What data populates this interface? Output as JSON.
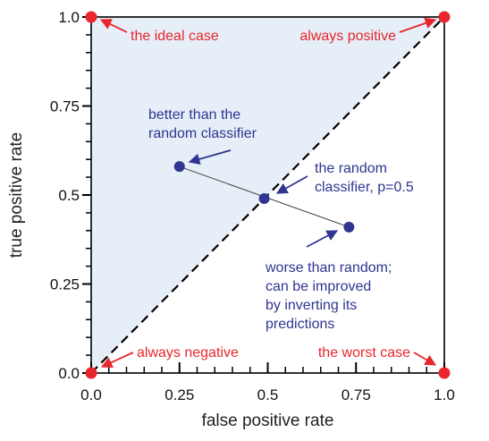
{
  "chart_data": {
    "type": "scatter",
    "xlabel": "false positive rate",
    "ylabel": "true positive rate",
    "xlim": [
      0,
      1
    ],
    "ylim": [
      0,
      1
    ],
    "x_ticks": [
      "0.0",
      "0.25",
      "0.5",
      "0.75",
      "1.0"
    ],
    "y_ticks": [
      "0.0",
      "0.25",
      "0.5",
      "0.75",
      "1.0"
    ],
    "grid": false,
    "legend": "none",
    "shaded_region": {
      "description_color": "#e6eef8",
      "vertices": [
        [
          0,
          0
        ],
        [
          0,
          1
        ],
        [
          1,
          1
        ]
      ]
    },
    "diagonal": {
      "from": [
        0,
        0
      ],
      "to": [
        1,
        1
      ],
      "style": "dashed"
    },
    "corner_points": [
      {
        "x": 0,
        "y": 1,
        "label": "the ideal case"
      },
      {
        "x": 1,
        "y": 1,
        "label": "always positive"
      },
      {
        "x": 0,
        "y": 0,
        "label": "always negative"
      },
      {
        "x": 1,
        "y": 0,
        "label": "the worst case"
      }
    ],
    "classifier_points": [
      {
        "x": 0.25,
        "y": 0.58,
        "label_lines": [
          "better than the",
          "random classifier"
        ]
      },
      {
        "x": 0.49,
        "y": 0.49,
        "label_lines": [
          "the random",
          "classifier, p=0.5"
        ]
      },
      {
        "x": 0.73,
        "y": 0.41,
        "label_lines": [
          "worse than random;",
          "can be improved",
          "by inverting its",
          "predictions"
        ]
      }
    ],
    "colors": {
      "corner": "#e8262b",
      "classifier": "#2f3590",
      "shade": "#e6eef8",
      "axis": "#000000"
    }
  }
}
